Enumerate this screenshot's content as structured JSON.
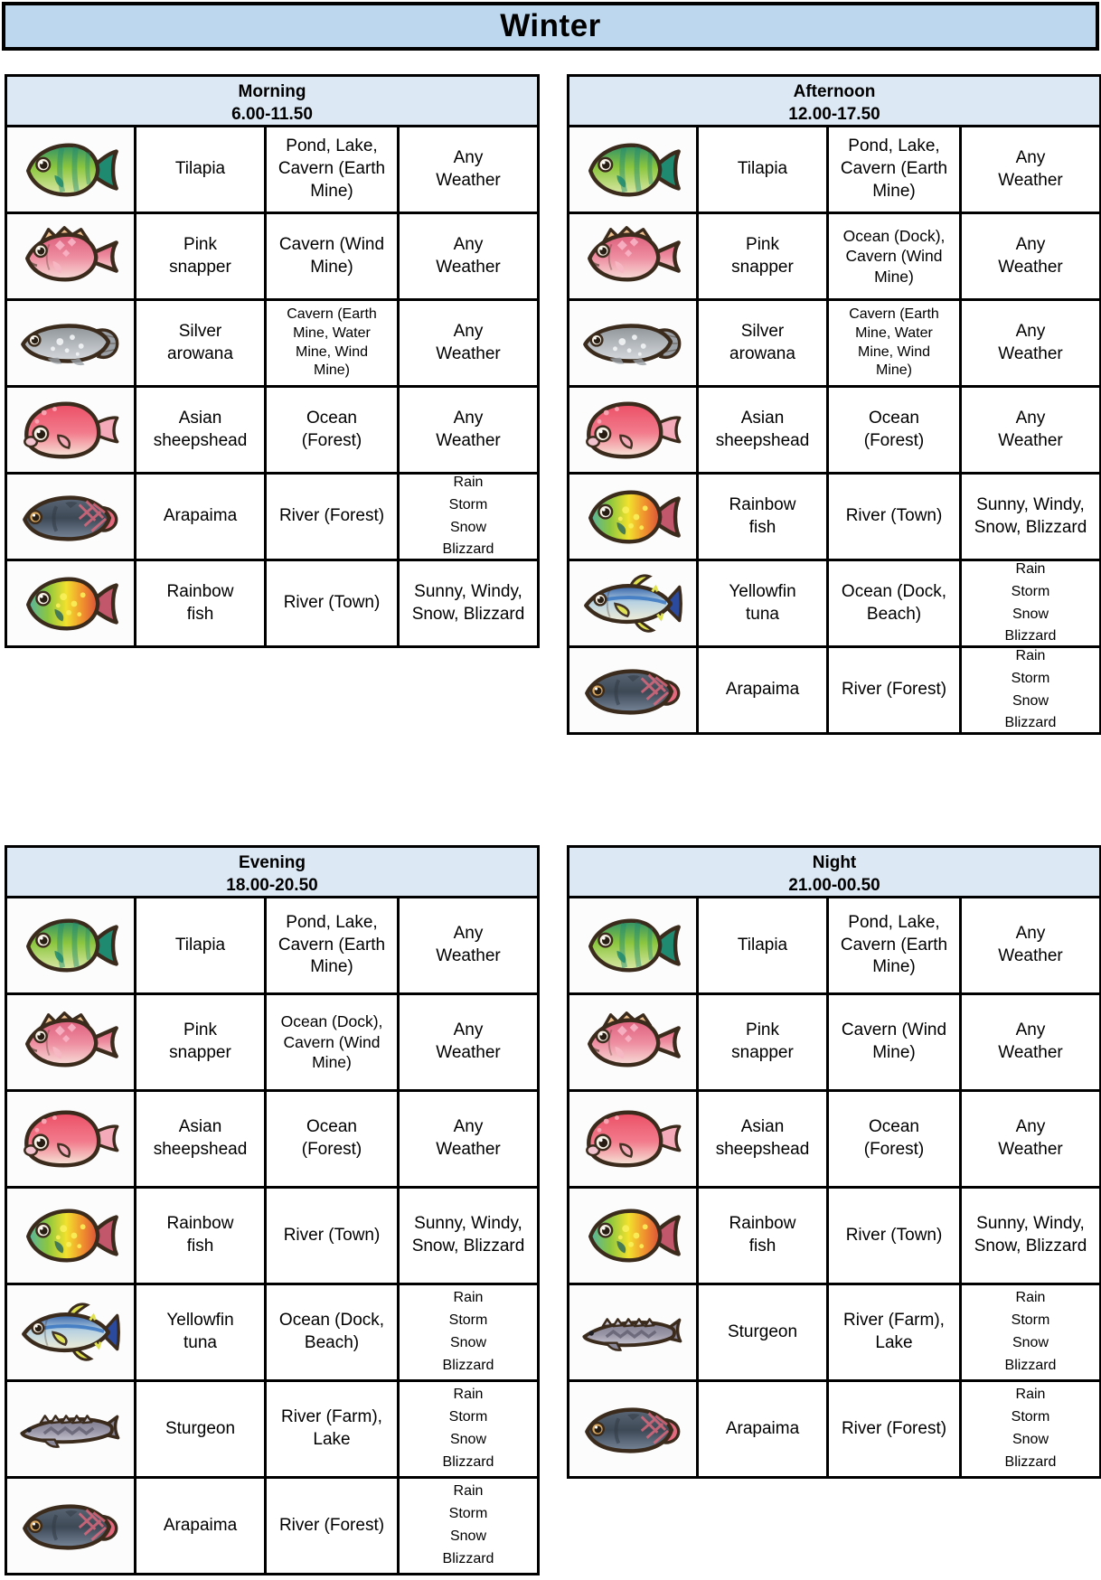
{
  "title": "Winter",
  "colors": {
    "title_bg": "#bdd7ee",
    "header_bg": "#dce8f4",
    "border": "#000000",
    "cell_bg": "#ffffff",
    "outline_brown": "#3b2b1d"
  },
  "fish_icons": {
    "tilapia": {
      "shape": "oval",
      "dir": "v",
      "stops": [
        [
          0,
          "#2f9167"
        ],
        [
          0.45,
          "#8cc63f"
        ],
        [
          1,
          "#dce8a8"
        ]
      ],
      "fin": "#1f8a70",
      "stripes": true
    },
    "pink_snapper": {
      "shape": "snapper",
      "dir": "v",
      "stops": [
        [
          0,
          "#dd5f7c"
        ],
        [
          0.5,
          "#ee8da0"
        ],
        [
          1,
          "#f7dcd6"
        ]
      ],
      "fin": "#f2c28f",
      "dot": "#f9b4c6"
    },
    "silver_arowana": {
      "shape": "long",
      "dir": "v",
      "stops": [
        [
          0,
          "#8d9297"
        ],
        [
          0.5,
          "#b3b8bd"
        ],
        [
          1,
          "#d8dbde"
        ]
      ],
      "fin": "#9aa0a6",
      "dot": "#f2f4f5"
    },
    "asian_sheepshead": {
      "shape": "blob",
      "dir": "v",
      "stops": [
        [
          0,
          "#ec4f66"
        ],
        [
          0.55,
          "#f27b8c"
        ],
        [
          1,
          "#f6e6d9"
        ]
      ],
      "fin": "#f4aab9",
      "dot": "#f9a9b6"
    },
    "arapaima": {
      "shape": "arapaima",
      "dir": "v",
      "stops": [
        [
          0,
          "#5a6675"
        ],
        [
          0.5,
          "#3e4956"
        ],
        [
          1,
          "#77869a"
        ]
      ],
      "fin": "#4a5462",
      "accent": "#e4697e"
    },
    "rainbow_fish": {
      "shape": "oval",
      "dir": "h",
      "stops": [
        [
          0,
          "#54b3a0"
        ],
        [
          0.28,
          "#8cc63f"
        ],
        [
          0.55,
          "#f2e12e"
        ],
        [
          0.78,
          "#f0912e"
        ],
        [
          1,
          "#d9503a"
        ]
      ],
      "fin": "#2f6b5c",
      "tail": "#c2566a",
      "dot": "#f9ef5a"
    },
    "yellowfin_tuna": {
      "shape": "tuna",
      "dir": "v",
      "stops": [
        [
          0,
          "#2f5fa8"
        ],
        [
          0.45,
          "#b8d2e2"
        ],
        [
          1,
          "#f1edd6"
        ]
      ],
      "fin": "#dfe14e",
      "tail": "#2b4a9e",
      "stripe": "#3a77c2"
    },
    "sturgeon": {
      "shape": "sturgeon",
      "dir": "v",
      "stops": [
        [
          0,
          "#7e7b8e"
        ],
        [
          0.55,
          "#9b98a9"
        ],
        [
          1,
          "#c8c5d2"
        ]
      ],
      "fin": "#8a8798",
      "accent": "#5d5b6c"
    }
  },
  "tables": [
    {
      "name": "Morning",
      "time": "6.00-11.50",
      "rows": [
        {
          "fish": "Tilapia",
          "icon": "tilapia",
          "location": "Pond, Lake, Cavern (Earth Mine)",
          "weather": [
            "Any",
            "Weather"
          ]
        },
        {
          "fish": "Pink snapper",
          "icon": "pink_snapper",
          "location": "Cavern (Wind Mine)",
          "weather": [
            "Any",
            "Weather"
          ]
        },
        {
          "fish": "Silver arowana",
          "icon": "silver_arowana",
          "location": "Cavern (Earth Mine, Water Mine, Wind Mine)",
          "weather": [
            "Any",
            "Weather"
          ]
        },
        {
          "fish": "Asian sheepshead",
          "icon": "asian_sheepshead",
          "location": "Ocean (Forest)",
          "weather": [
            "Any",
            "Weather"
          ]
        },
        {
          "fish": "Arapaima",
          "icon": "arapaima",
          "location": "River (Forest)",
          "weather": [
            "Rain",
            "Storm",
            "Snow",
            "Blizzard"
          ]
        },
        {
          "fish": "Rainbow fish",
          "icon": "rainbow_fish",
          "location": "River (Town)",
          "weather": [
            "Sunny, Windy,",
            "Snow, Blizzard"
          ]
        }
      ]
    },
    {
      "name": "Afternoon",
      "time": "12.00-17.50",
      "rows": [
        {
          "fish": "Tilapia",
          "icon": "tilapia",
          "location": "Pond, Lake, Cavern (Earth Mine)",
          "weather": [
            "Any",
            "Weather"
          ]
        },
        {
          "fish": "Pink snapper",
          "icon": "pink_snapper",
          "location": "Ocean (Dock), Cavern (Wind Mine)",
          "weather": [
            "Any",
            "Weather"
          ]
        },
        {
          "fish": "Silver arowana",
          "icon": "silver_arowana",
          "location": "Cavern (Earth Mine, Water Mine, Wind Mine)",
          "weather": [
            "Any",
            "Weather"
          ]
        },
        {
          "fish": "Asian sheepshead",
          "icon": "asian_sheepshead",
          "location": "Ocean (Forest)",
          "weather": [
            "Any",
            "Weather"
          ]
        },
        {
          "fish": "Rainbow fish",
          "icon": "rainbow_fish",
          "location": "River (Town)",
          "weather": [
            "Sunny, Windy,",
            "Snow, Blizzard"
          ]
        },
        {
          "fish": "Yellowfin tuna",
          "icon": "yellowfin_tuna",
          "location": "Ocean (Dock, Beach)",
          "weather": [
            "Rain",
            "Storm",
            "Snow",
            "Blizzard"
          ]
        },
        {
          "fish": "Arapaima",
          "icon": "arapaima",
          "location": "River (Forest)",
          "weather": [
            "Rain",
            "Storm",
            "Snow",
            "Blizzard"
          ]
        }
      ]
    },
    {
      "name": "Evening",
      "time": "18.00-20.50",
      "rows": [
        {
          "fish": "Tilapia",
          "icon": "tilapia",
          "location": "Pond, Lake, Cavern (Earth Mine)",
          "weather": [
            "Any",
            "Weather"
          ]
        },
        {
          "fish": "Pink snapper",
          "icon": "pink_snapper",
          "location": "Ocean (Dock), Cavern (Wind Mine)",
          "weather": [
            "Any",
            "Weather"
          ]
        },
        {
          "fish": "Asian sheepshead",
          "icon": "asian_sheepshead",
          "location": "Ocean (Forest)",
          "weather": [
            "Any",
            "Weather"
          ]
        },
        {
          "fish": "Rainbow fish",
          "icon": "rainbow_fish",
          "location": "River (Town)",
          "weather": [
            "Sunny, Windy,",
            "Snow, Blizzard"
          ]
        },
        {
          "fish": "Yellowfin tuna",
          "icon": "yellowfin_tuna",
          "location": "Ocean (Dock, Beach)",
          "weather": [
            "Rain",
            "Storm",
            "Snow",
            "Blizzard"
          ]
        },
        {
          "fish": "Sturgeon",
          "icon": "sturgeon",
          "location": "River (Farm), Lake",
          "weather": [
            "Rain",
            "Storm",
            "Snow",
            "Blizzard"
          ]
        },
        {
          "fish": "Arapaima",
          "icon": "arapaima",
          "location": "River (Forest)",
          "weather": [
            "Rain",
            "Storm",
            "Snow",
            "Blizzard"
          ]
        }
      ]
    },
    {
      "name": "Night",
      "time": "21.00-00.50",
      "rows": [
        {
          "fish": "Tilapia",
          "icon": "tilapia",
          "location": "Pond, Lake, Cavern (Earth Mine)",
          "weather": [
            "Any",
            "Weather"
          ]
        },
        {
          "fish": "Pink snapper",
          "icon": "pink_snapper",
          "location": "Cavern (Wind Mine)",
          "weather": [
            "Any",
            "Weather"
          ]
        },
        {
          "fish": "Asian sheepshead",
          "icon": "asian_sheepshead",
          "location": "Ocean (Forest)",
          "weather": [
            "Any",
            "Weather"
          ]
        },
        {
          "fish": "Rainbow fish",
          "icon": "rainbow_fish",
          "location": "River (Town)",
          "weather": [
            "Sunny, Windy,",
            "Snow, Blizzard"
          ]
        },
        {
          "fish": "Sturgeon",
          "icon": "sturgeon",
          "location": "River (Farm), Lake",
          "weather": [
            "Rain",
            "Storm",
            "Snow",
            "Blizzard"
          ]
        },
        {
          "fish": "Arapaima",
          "icon": "arapaima",
          "location": "River (Forest)",
          "weather": [
            "Rain",
            "Storm",
            "Snow",
            "Blizzard"
          ]
        }
      ]
    }
  ]
}
